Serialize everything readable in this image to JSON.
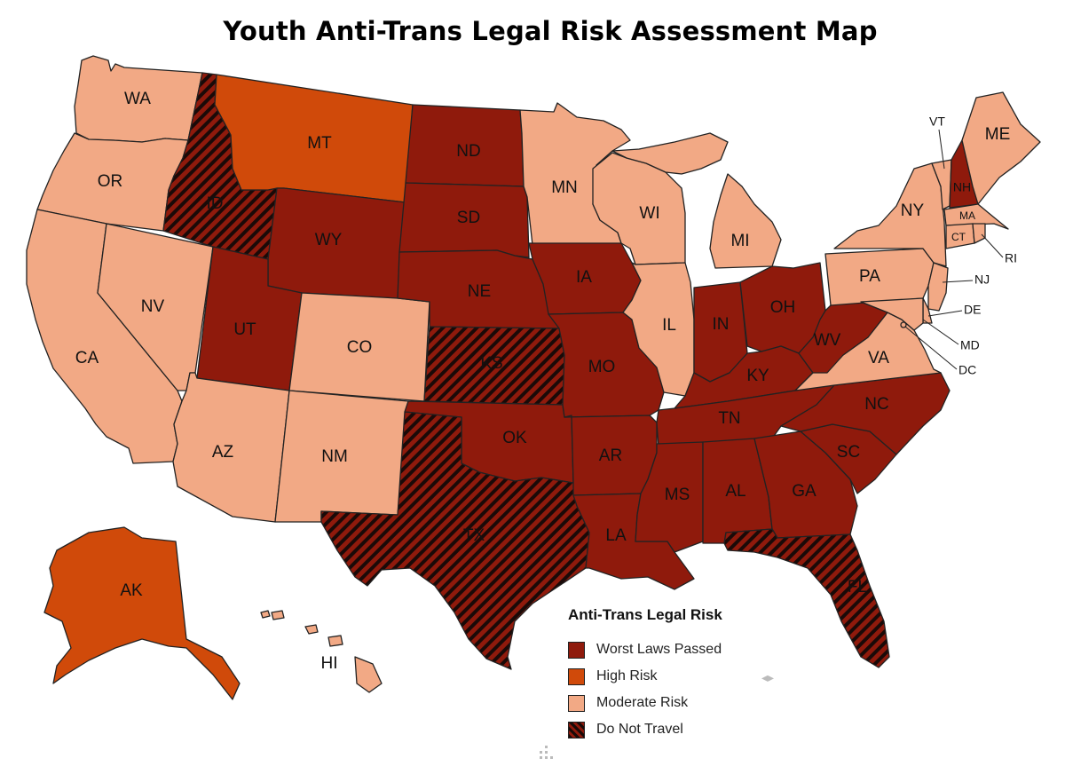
{
  "title": "Youth Anti-Trans Legal Risk Assessment Map",
  "colors": {
    "worst": "#8f1a0c",
    "high": "#d04a0a",
    "moderate": "#f2a985",
    "dnt_base": "#8f1a0c",
    "dnt_stripe": "#1a0a08"
  },
  "legend": {
    "title": "Anti-Trans Legal Risk",
    "items": [
      {
        "label": "Worst Laws Passed",
        "category": "worst"
      },
      {
        "label": "High Risk",
        "category": "high"
      },
      {
        "label": "Moderate Risk",
        "category": "moderate"
      },
      {
        "label": "Do Not Travel",
        "category": "dnt"
      }
    ]
  },
  "states": [
    {
      "abbr": "WA",
      "category": "moderate"
    },
    {
      "abbr": "OR",
      "category": "moderate"
    },
    {
      "abbr": "CA",
      "category": "moderate"
    },
    {
      "abbr": "NV",
      "category": "moderate"
    },
    {
      "abbr": "ID",
      "category": "dnt"
    },
    {
      "abbr": "MT",
      "category": "high"
    },
    {
      "abbr": "WY",
      "category": "worst"
    },
    {
      "abbr": "UT",
      "category": "worst"
    },
    {
      "abbr": "AZ",
      "category": "moderate"
    },
    {
      "abbr": "CO",
      "category": "moderate"
    },
    {
      "abbr": "NM",
      "category": "moderate"
    },
    {
      "abbr": "ND",
      "category": "worst"
    },
    {
      "abbr": "SD",
      "category": "worst"
    },
    {
      "abbr": "NE",
      "category": "worst"
    },
    {
      "abbr": "KS",
      "category": "dnt"
    },
    {
      "abbr": "OK",
      "category": "worst"
    },
    {
      "abbr": "TX",
      "category": "dnt"
    },
    {
      "abbr": "MN",
      "category": "moderate"
    },
    {
      "abbr": "IA",
      "category": "worst"
    },
    {
      "abbr": "MO",
      "category": "worst"
    },
    {
      "abbr": "AR",
      "category": "worst"
    },
    {
      "abbr": "LA",
      "category": "worst"
    },
    {
      "abbr": "WI",
      "category": "moderate"
    },
    {
      "abbr": "IL",
      "category": "moderate"
    },
    {
      "abbr": "MI",
      "category": "moderate"
    },
    {
      "abbr": "IN",
      "category": "worst"
    },
    {
      "abbr": "OH",
      "category": "worst"
    },
    {
      "abbr": "KY",
      "category": "worst"
    },
    {
      "abbr": "TN",
      "category": "worst"
    },
    {
      "abbr": "MS",
      "category": "worst"
    },
    {
      "abbr": "AL",
      "category": "worst"
    },
    {
      "abbr": "GA",
      "category": "worst"
    },
    {
      "abbr": "FL",
      "category": "dnt"
    },
    {
      "abbr": "SC",
      "category": "worst"
    },
    {
      "abbr": "NC",
      "category": "worst"
    },
    {
      "abbr": "VA",
      "category": "moderate"
    },
    {
      "abbr": "WV",
      "category": "worst"
    },
    {
      "abbr": "PA",
      "category": "moderate"
    },
    {
      "abbr": "NY",
      "category": "moderate"
    },
    {
      "abbr": "VT",
      "category": "moderate"
    },
    {
      "abbr": "NH",
      "category": "worst"
    },
    {
      "abbr": "ME",
      "category": "moderate"
    },
    {
      "abbr": "MA",
      "category": "moderate"
    },
    {
      "abbr": "CT",
      "category": "moderate"
    },
    {
      "abbr": "RI",
      "category": "moderate"
    },
    {
      "abbr": "NJ",
      "category": "moderate"
    },
    {
      "abbr": "DE",
      "category": "moderate"
    },
    {
      "abbr": "MD",
      "category": "moderate"
    },
    {
      "abbr": "DC",
      "category": "moderate"
    },
    {
      "abbr": "AK",
      "category": "high"
    },
    {
      "abbr": "HI",
      "category": "moderate"
    }
  ],
  "icons": [
    "nav-arrows-icon",
    "resize-grip-icon"
  ]
}
